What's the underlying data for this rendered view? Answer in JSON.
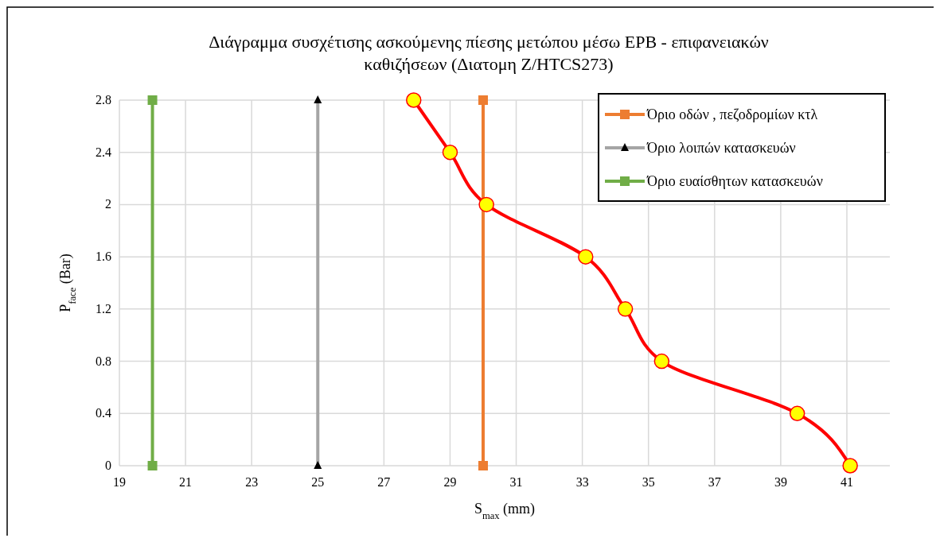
{
  "chart_data": {
    "type": "line",
    "title": "Διάγραμμα συσχέτισης ασκούμενης πίεσης μετώπου μέσω EPB - επιφανειακών καθιζήσεων (Διατομη Z/HTCS273)",
    "xlabel": "S$_{max}$ (mm)",
    "ylabel": "P$_{face}$ (Bar)",
    "xlim": [
      19,
      42.3
    ],
    "xticks": [
      19,
      21,
      23,
      25,
      27,
      29,
      31,
      33,
      35,
      37,
      39,
      41
    ],
    "ylim": [
      0,
      2.8
    ],
    "yticks": [
      0,
      0.4,
      0.8,
      1.2,
      1.6,
      2,
      2.4,
      2.8
    ],
    "grid": true,
    "legend": "top right",
    "line_style": "solid",
    "series": [
      {
        "name": "Όριο οδών , πεζοδρομίων κτλ",
        "color": "#ed7d31",
        "marker": "square",
        "x": [
          30,
          30
        ],
        "values": [
          0,
          2.8
        ]
      },
      {
        "name": "Όριο λοιπών κατασκευών",
        "color": "#a5a5a5",
        "marker": "triangle",
        "x": [
          25,
          25
        ],
        "values": [
          0,
          2.8
        ]
      },
      {
        "name": "Όριο ευαίσθητων κατασκευών",
        "color": "#70ad47",
        "marker": "square",
        "x": [
          20,
          20
        ],
        "values": [
          0,
          2.8
        ]
      },
      {
        "color": "#ff0000",
        "marker": "circle",
        "x": [
          27.9,
          29.0,
          30.1,
          33.1,
          34.3,
          35.4,
          39.5,
          41.1
        ],
        "values": [
          2.8,
          2.4,
          2.0,
          1.6,
          1.2,
          0.8,
          0.4,
          0
        ]
      }
    ]
  }
}
